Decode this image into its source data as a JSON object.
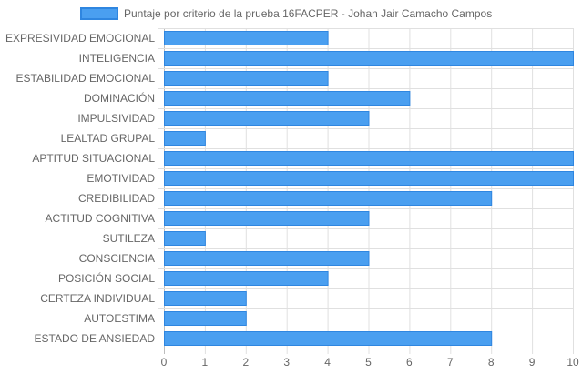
{
  "chart_data": {
    "type": "bar",
    "orientation": "horizontal",
    "categories": [
      "EXPRESIVIDAD EMOCIONAL",
      "INTELIGENCIA",
      "ESTABILIDAD EMOCIONAL",
      "DOMINACIÓN",
      "IMPULSIVIDAD",
      "LEALTAD GRUPAL",
      "APTITUD SITUACIONAL",
      "EMOTIVIDAD",
      "CREDIBILIDAD",
      "ACTITUD COGNITIVA",
      "SUTILEZA",
      "CONSCIENCIA",
      "POSICIÓN SOCIAL",
      "CERTEZA INDIVIDUAL",
      "AUTOESTIMA",
      "ESTADO DE ANSIEDAD"
    ],
    "series": [
      {
        "name": "Puntaje por criterio de la prueba 16FACPER - Johan Jair Camacho Campos",
        "values": [
          4,
          10,
          4,
          6,
          5,
          1,
          10,
          10,
          8,
          5,
          1,
          5,
          4,
          2,
          2,
          8
        ],
        "color": "#4a9ff0",
        "border_color": "#2f86e0"
      }
    ],
    "x_ticks": [
      "0",
      "1",
      "2",
      "3",
      "4",
      "5",
      "6",
      "7",
      "8",
      "9",
      "10"
    ],
    "xlim": [
      0,
      10
    ],
    "grid": true,
    "legend_position": "top"
  }
}
